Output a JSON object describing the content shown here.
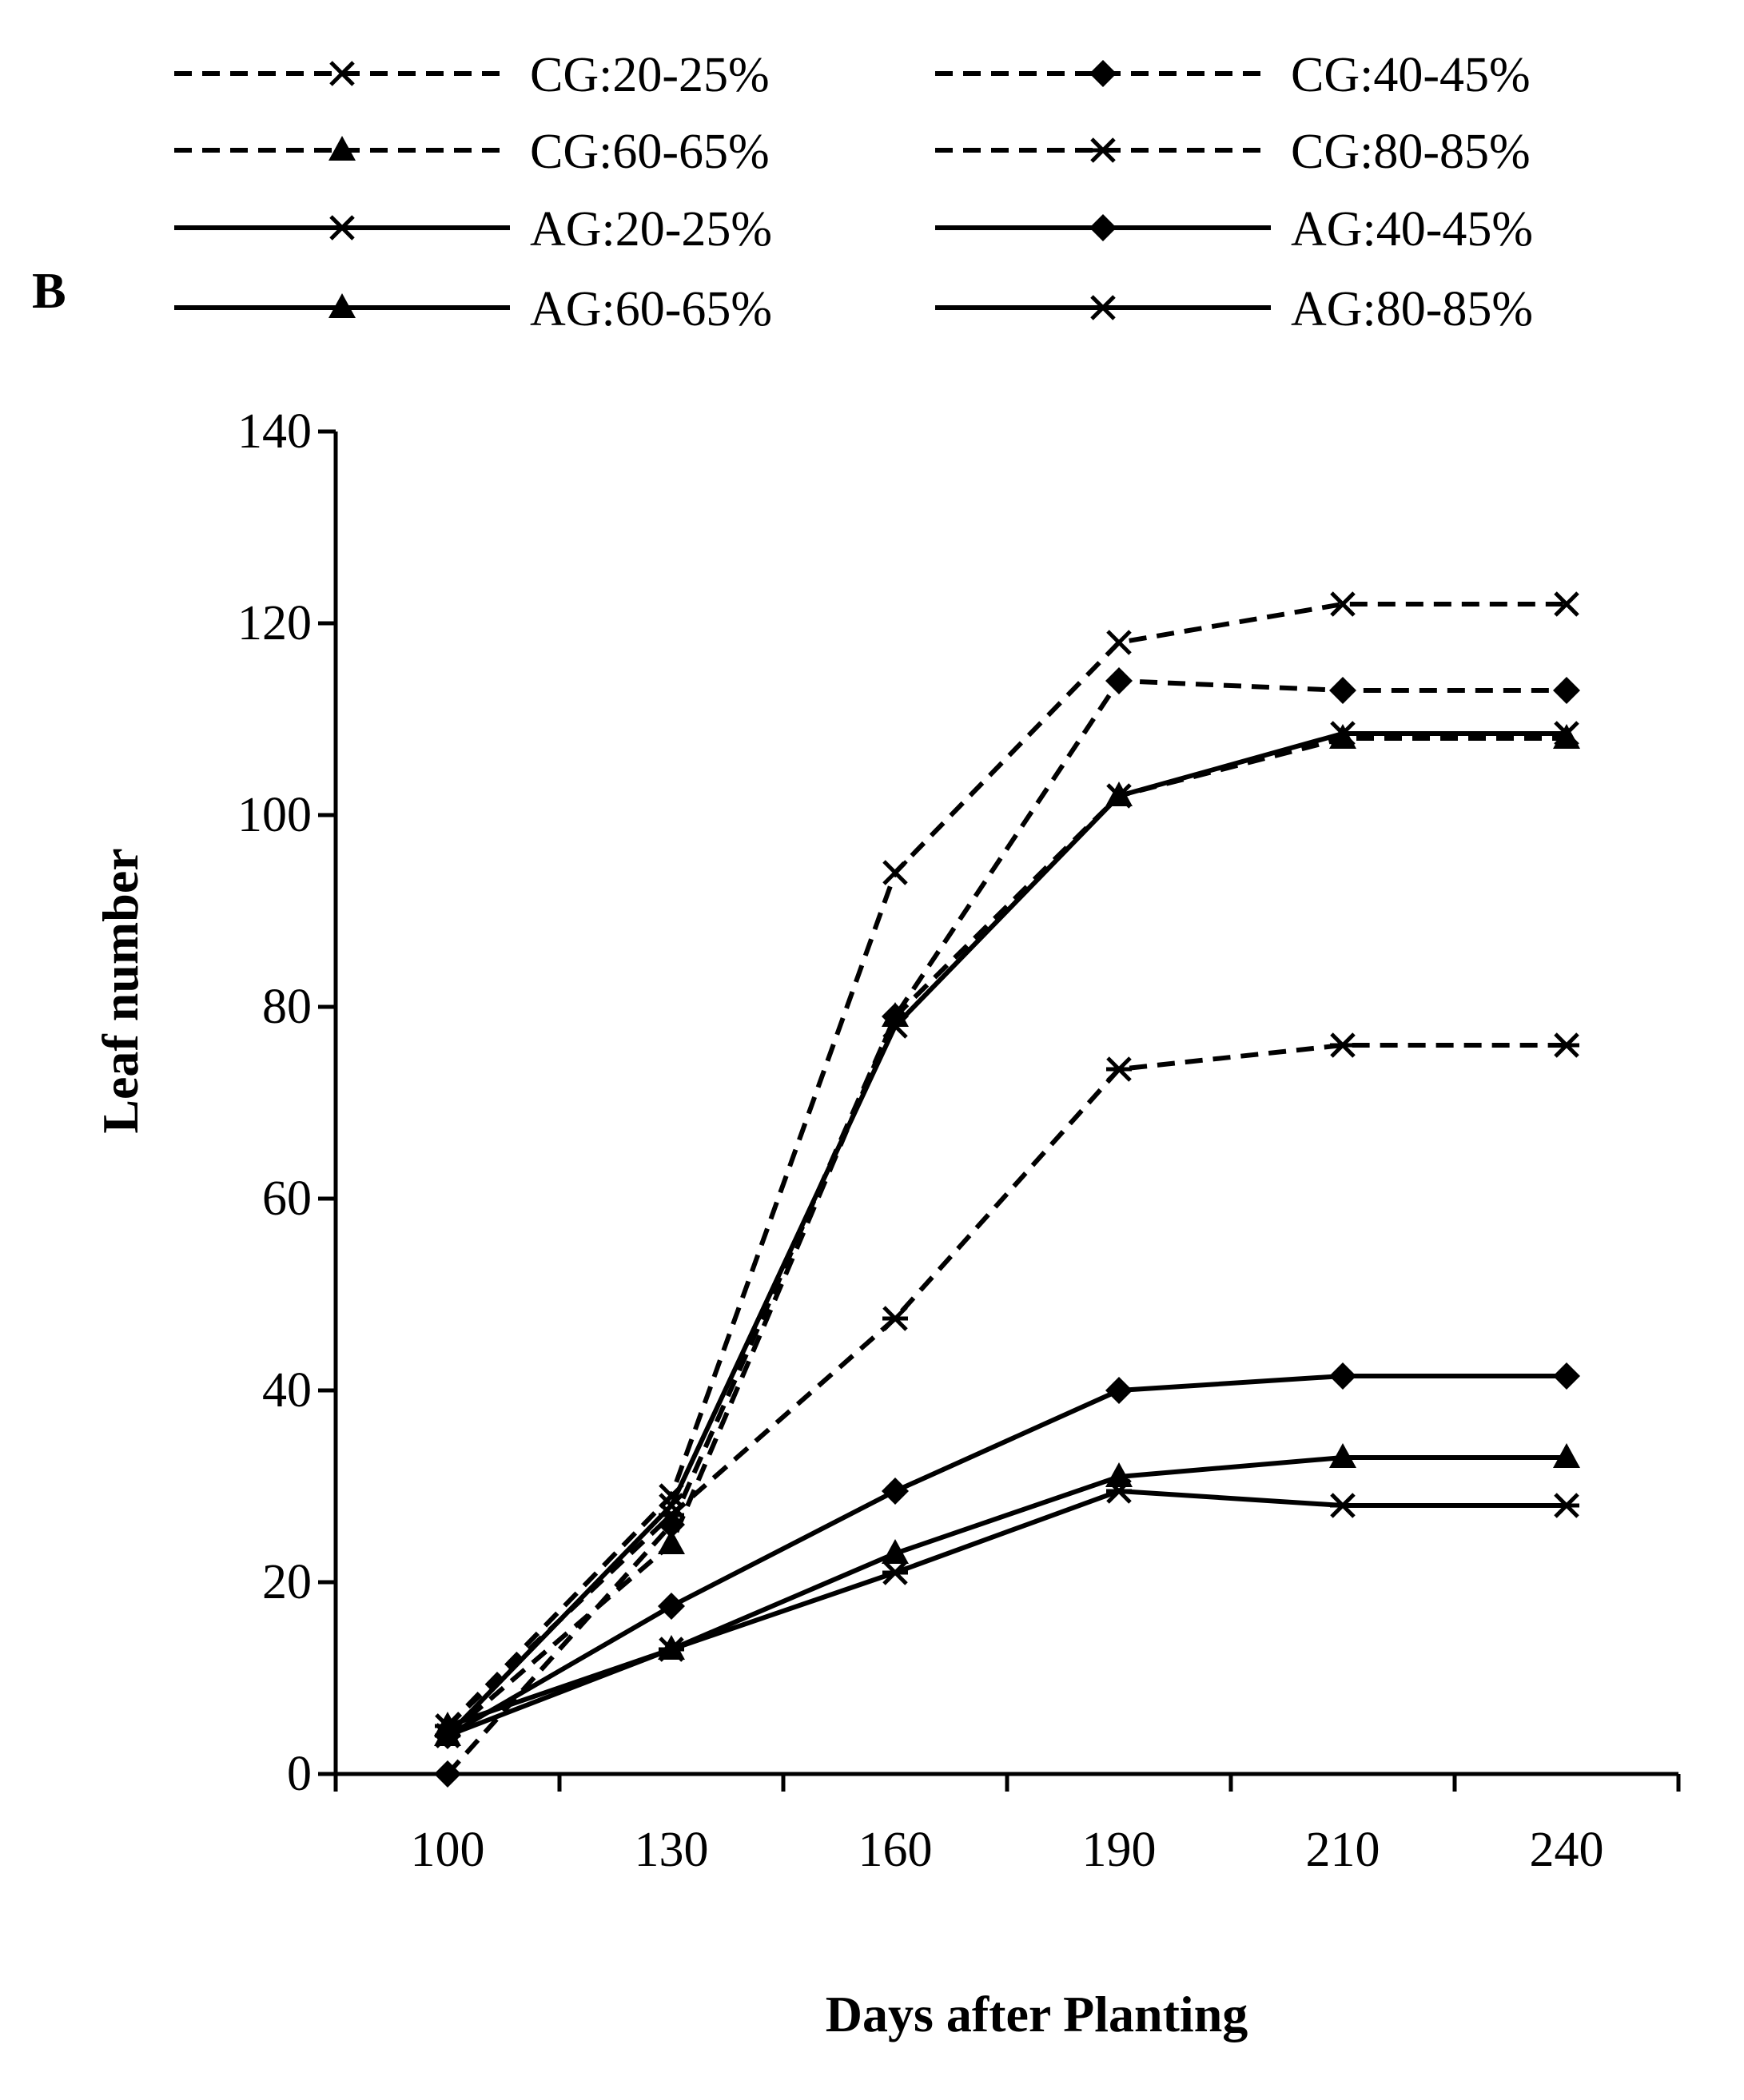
{
  "chart_data": {
    "type": "line",
    "panel_label": "B",
    "xlabel": "Days after Planting",
    "ylabel": "Leaf number",
    "categories": [
      "100",
      "130",
      "160",
      "190",
      "210",
      "240"
    ],
    "ylim": [
      0,
      140
    ],
    "yticks": [
      0,
      20,
      40,
      60,
      80,
      100,
      120,
      140
    ],
    "legend_position": "top",
    "series": [
      {
        "name": "CG:20-25%",
        "line": "dashed",
        "marker": "x",
        "values": [
          5,
          29,
          94,
          118,
          122,
          122
        ]
      },
      {
        "name": "CG:40-45%",
        "line": "dashed",
        "marker": "diamond",
        "values": [
          0,
          26,
          79,
          114,
          113,
          113
        ]
      },
      {
        "name": "CG:60-65%",
        "line": "dashed",
        "marker": "triangle",
        "values": [
          4,
          24,
          79,
          102,
          108,
          108
        ]
      },
      {
        "name": "CG:80-85%",
        "line": "dashed",
        "marker": "star",
        "values": [
          5,
          27,
          47.5,
          73.5,
          76,
          76
        ]
      },
      {
        "name": "AG:20-25%",
        "line": "solid",
        "marker": "x",
        "values": [
          4,
          28,
          78,
          102,
          108.5,
          108.5
        ]
      },
      {
        "name": "AG:40-45%",
        "line": "solid",
        "marker": "diamond",
        "values": [
          4,
          17.5,
          29.5,
          40,
          41.5,
          41.5
        ]
      },
      {
        "name": "AG:60-65%",
        "line": "solid",
        "marker": "triangle",
        "values": [
          5,
          13,
          23,
          31,
          33,
          33
        ]
      },
      {
        "name": "AG:80-85%",
        "line": "solid",
        "marker": "star",
        "values": [
          4,
          13,
          21,
          29.5,
          28,
          28
        ]
      }
    ]
  }
}
